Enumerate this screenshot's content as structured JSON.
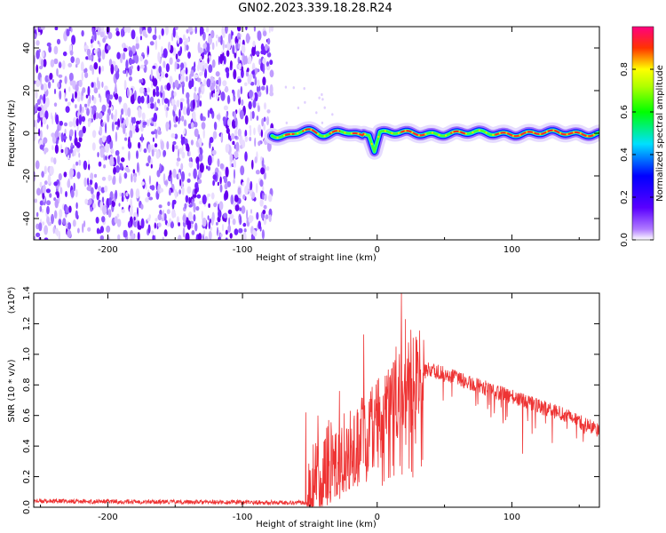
{
  "title": "GN02.2023.339.18.28.R24",
  "chart_data": [
    {
      "type": "heatmap",
      "xlabel": "Height of straight line (km)",
      "ylabel": "Frequency (Hz)",
      "xlim": [
        -255,
        165
      ],
      "ylim": [
        -50,
        50
      ],
      "x_ticks": [
        -200,
        -100,
        0,
        100
      ],
      "y_ticks": [
        -40,
        -20,
        0,
        20,
        40
      ],
      "colorbar": {
        "label": "Normalized spectral amplitude",
        "range": [
          0,
          1
        ],
        "ticks": [
          0.0,
          0.2,
          0.4,
          0.6,
          0.8
        ],
        "colormap": "rainbow (white-violet-blue-cyan-green-yellow-red-magenta)"
      },
      "features": {
        "noise_region_x": [
          -255,
          -78
        ],
        "signal_band_x": [
          -78,
          165
        ],
        "signal_band_frequency": 0,
        "dip_near_x": -2,
        "dip_min_frequency": -8
      }
    },
    {
      "type": "line",
      "xlabel": "Height of straight line (km)",
      "ylabel": "SNR (10 * v/v)",
      "y_multiplier": "(x10⁴)",
      "xlim": [
        -255,
        165
      ],
      "ylim": [
        0,
        1.4
      ],
      "x_ticks": [
        -200,
        -100,
        0,
        100
      ],
      "y_ticks": [
        0.0,
        0.2,
        0.4,
        0.6,
        0.8,
        1.0,
        1.2,
        1.4
      ],
      "grid": false,
      "series": [
        {
          "color": "#ee3333",
          "envelope": [
            {
              "x": -255,
              "y": 0.04
            },
            {
              "x": -60,
              "y": 0.03
            },
            {
              "x": -52,
              "y": 0.03
            },
            {
              "x": -45,
              "y": 0.22
            },
            {
              "x": -30,
              "y": 0.32
            },
            {
              "x": -15,
              "y": 0.4
            },
            {
              "x": 0,
              "y": 0.56
            },
            {
              "x": 10,
              "y": 0.66
            },
            {
              "x": 20,
              "y": 0.78
            },
            {
              "x": 30,
              "y": 0.88
            },
            {
              "x": 40,
              "y": 0.9
            },
            {
              "x": 60,
              "y": 0.84
            },
            {
              "x": 80,
              "y": 0.78
            },
            {
              "x": 100,
              "y": 0.72
            },
            {
              "x": 120,
              "y": 0.66
            },
            {
              "x": 140,
              "y": 0.6
            },
            {
              "x": 165,
              "y": 0.5
            }
          ],
          "peaks": [
            {
              "x": -53,
              "y": 0.62
            },
            {
              "x": -44,
              "y": 0.6
            },
            {
              "x": -36,
              "y": 0.57
            },
            {
              "x": -28,
              "y": 0.76
            },
            {
              "x": -20,
              "y": 0.63
            },
            {
              "x": -15,
              "y": 0.59
            },
            {
              "x": -10,
              "y": 1.13
            },
            {
              "x": -6,
              "y": 0.69
            },
            {
              "x": 6,
              "y": 0.86
            },
            {
              "x": 14,
              "y": 1.05
            },
            {
              "x": 18,
              "y": 1.4
            },
            {
              "x": 21,
              "y": 1.23
            },
            {
              "x": 25,
              "y": 1.16
            },
            {
              "x": 29,
              "y": 1.05
            }
          ],
          "dips": [
            {
              "x": -45,
              "y": 0.05
            },
            {
              "x": -38,
              "y": 0.06
            },
            {
              "x": 108,
              "y": 0.35
            },
            {
              "x": 115,
              "y": 0.48
            },
            {
              "x": 130,
              "y": 0.42
            },
            {
              "x": 148,
              "y": 0.45
            }
          ]
        }
      ]
    }
  ]
}
